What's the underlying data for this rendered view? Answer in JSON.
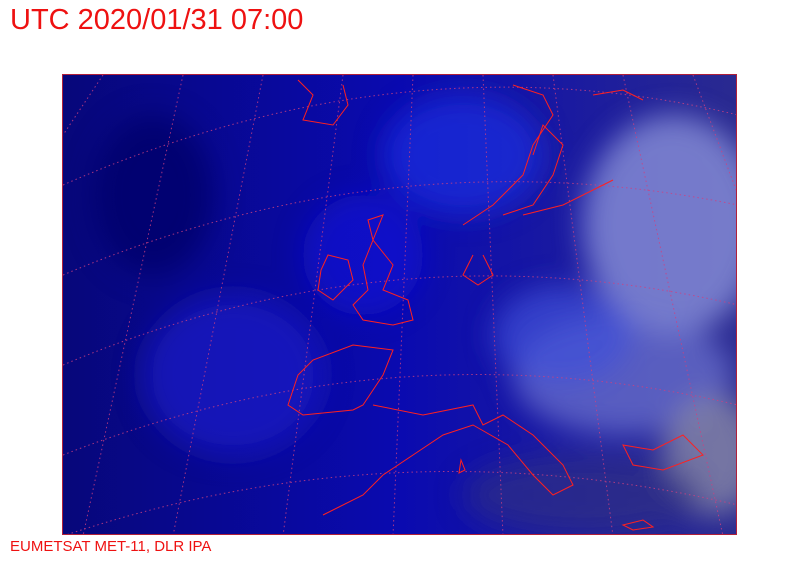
{
  "header": {
    "title": "UTC 2020/01/31 07:00"
  },
  "footer": {
    "credit": "EUMETSAT MET-11, DLR IPA"
  },
  "map": {
    "imagery": "satellite-composite-europe",
    "colors": {
      "background": "#0a0a8c",
      "cloud": "#5a6ee6",
      "coastline": "#ff2020",
      "grid": "#d04080",
      "text": "#ee1111"
    }
  }
}
